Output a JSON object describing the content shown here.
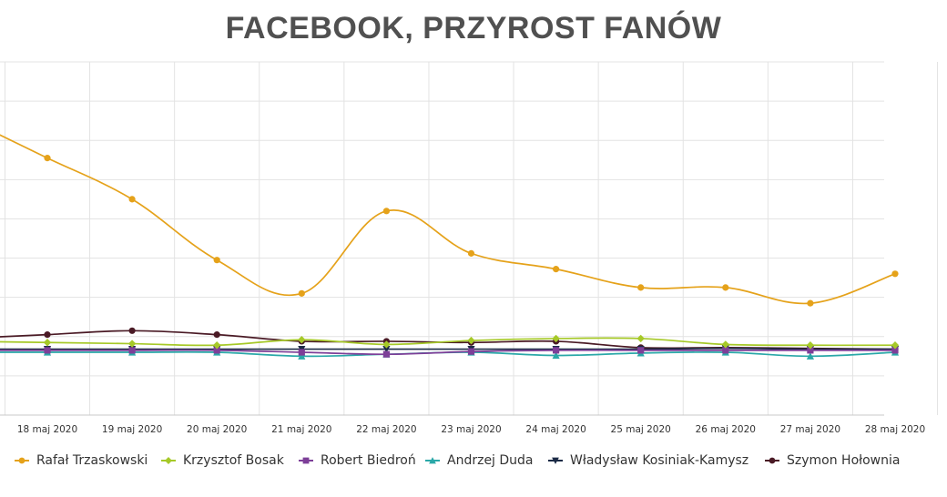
{
  "title": "FACEBOOK, PRZYROST FANÓW",
  "chart_data": {
    "type": "line",
    "title": "FACEBOOK, PRZYROST FANÓW",
    "xlabel": "",
    "ylabel": "",
    "categories": [
      "18 maj 2020",
      "19 maj 2020",
      "20 maj 2020",
      "21 maj 2020",
      "22 maj 2020",
      "23 maj 2020",
      "24 maj 2020",
      "25 maj 2020",
      "26 maj 2020",
      "27 maj 2020",
      "28 maj 2020"
    ],
    "ylim": [
      -1,
      8
    ],
    "grid": true,
    "legend": "bottom",
    "series": [
      {
        "name": "Rafał Trzaskowski",
        "color": "#e5a21a",
        "marker": "circle",
        "values": [
          5.55,
          4.5,
          2.95,
          2.1,
          4.2,
          3.12,
          2.72,
          2.25,
          2.25,
          1.85,
          2.6
        ]
      },
      {
        "name": "Krzysztof Bosak",
        "color": "#a6c928",
        "marker": "diamond",
        "values": [
          0.85,
          0.82,
          0.78,
          0.92,
          0.8,
          0.9,
          0.95,
          0.95,
          0.8,
          0.78,
          0.78
        ]
      },
      {
        "name": "Robert Biedroń",
        "color": "#7d3f98",
        "marker": "square",
        "values": [
          0.65,
          0.65,
          0.65,
          0.6,
          0.55,
          0.62,
          0.65,
          0.65,
          0.65,
          0.65,
          0.65
        ]
      },
      {
        "name": "Andrzej Duda",
        "color": "#2aa8a8",
        "marker": "triangle",
        "values": [
          0.6,
          0.6,
          0.6,
          0.5,
          0.55,
          0.6,
          0.52,
          0.58,
          0.6,
          0.5,
          0.6
        ]
      },
      {
        "name": "Władysław Kosiniak-Kamysz",
        "color": "#1b2a45",
        "marker": "triangle-down",
        "values": [
          0.68,
          0.68,
          0.68,
          0.68,
          0.68,
          0.68,
          0.68,
          0.68,
          0.7,
          0.68,
          0.68
        ]
      },
      {
        "name": "Szymon Hołownia",
        "color": "#4a1a25",
        "marker": "circle",
        "values": [
          1.05,
          1.15,
          1.05,
          0.88,
          0.88,
          0.85,
          0.88,
          0.72,
          0.72,
          0.7,
          0.68
        ]
      }
    ]
  }
}
